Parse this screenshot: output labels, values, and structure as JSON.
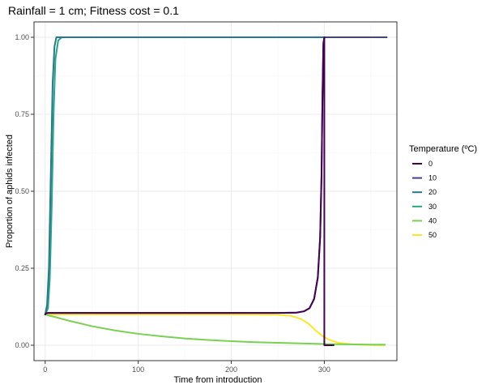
{
  "chart_data": {
    "type": "line",
    "title": "Rainfall = 1 cm; Fitness cost = 0.1",
    "xlabel": "Time from introduction",
    "ylabel": "Proportion of aphids infected",
    "xlim": [
      -12,
      378
    ],
    "ylim": [
      -0.05,
      1.05
    ],
    "x_ticks": [
      0,
      100,
      200,
      300
    ],
    "y_ticks": [
      0.0,
      0.25,
      0.5,
      0.75,
      1.0
    ],
    "x_tick_labels": [
      "0",
      "100",
      "200",
      "300"
    ],
    "y_tick_labels": [
      "0.00",
      "0.25",
      "0.50",
      "0.75",
      "1.00"
    ],
    "grid": true,
    "legend": {
      "title": "Temperature (ºC)",
      "position": "right"
    },
    "series": [
      {
        "name": "0",
        "color": "#440154",
        "points": [
          [
            0,
            0.1
          ],
          [
            1,
            0.104
          ],
          [
            3,
            0.105
          ],
          [
            50,
            0.105
          ],
          [
            100,
            0.105
          ],
          [
            150,
            0.105
          ],
          [
            200,
            0.105
          ],
          [
            250,
            0.105
          ],
          [
            270,
            0.106
          ],
          [
            278,
            0.11
          ],
          [
            284,
            0.12
          ],
          [
            289,
            0.15
          ],
          [
            293,
            0.22
          ],
          [
            295.5,
            0.35
          ],
          [
            297,
            0.55
          ],
          [
            298,
            0.8
          ],
          [
            299,
            0.98
          ],
          [
            300,
            1.0
          ],
          [
            300,
            0.0
          ],
          [
            310,
            0.0
          ]
        ]
      },
      {
        "name": "10",
        "color": "#414487",
        "points": [
          [
            0,
            0.1
          ],
          [
            1,
            0.104
          ],
          [
            3,
            0.105
          ],
          [
            50,
            0.105
          ],
          [
            100,
            0.105
          ],
          [
            150,
            0.105
          ],
          [
            200,
            0.105
          ],
          [
            250,
            0.105
          ],
          [
            270,
            0.106
          ],
          [
            278,
            0.11
          ],
          [
            284,
            0.12
          ],
          [
            289,
            0.15
          ],
          [
            293,
            0.22
          ],
          [
            295.5,
            0.35
          ],
          [
            297,
            0.55
          ],
          [
            298,
            0.8
          ],
          [
            299,
            0.98
          ],
          [
            300,
            1.0
          ],
          [
            367,
            1.0
          ]
        ]
      },
      {
        "name": "20",
        "color": "#2A788E",
        "points": [
          [
            0,
            0.1
          ],
          [
            2,
            0.13
          ],
          [
            4,
            0.25
          ],
          [
            6,
            0.55
          ],
          [
            8,
            0.85
          ],
          [
            10,
            0.97
          ],
          [
            12,
            1.0
          ],
          [
            367,
            1.0
          ]
        ]
      },
      {
        "name": "30",
        "color": "#22A884",
        "points": [
          [
            0,
            0.1
          ],
          [
            3,
            0.12
          ],
          [
            5,
            0.22
          ],
          [
            7,
            0.45
          ],
          [
            9,
            0.75
          ],
          [
            11,
            0.93
          ],
          [
            14,
            0.99
          ],
          [
            18,
            1.0
          ],
          [
            367,
            1.0
          ]
        ]
      },
      {
        "name": "40",
        "color": "#7AD151",
        "points": [
          [
            0,
            0.1
          ],
          [
            25,
            0.08
          ],
          [
            50,
            0.062
          ],
          [
            75,
            0.048
          ],
          [
            100,
            0.037
          ],
          [
            125,
            0.029
          ],
          [
            150,
            0.022
          ],
          [
            175,
            0.017
          ],
          [
            200,
            0.013
          ],
          [
            225,
            0.01
          ],
          [
            250,
            0.008
          ],
          [
            275,
            0.006
          ],
          [
            300,
            0.004
          ],
          [
            325,
            0.003
          ],
          [
            350,
            0.002
          ],
          [
            365,
            0.002
          ]
        ]
      },
      {
        "name": "50",
        "color": "#FDE725",
        "points": [
          [
            0,
            0.1
          ],
          [
            5,
            0.1
          ],
          [
            50,
            0.1
          ],
          [
            100,
            0.1
          ],
          [
            150,
            0.1
          ],
          [
            200,
            0.1
          ],
          [
            250,
            0.099
          ],
          [
            265,
            0.095
          ],
          [
            275,
            0.085
          ],
          [
            283,
            0.07
          ],
          [
            290,
            0.05
          ],
          [
            297,
            0.032
          ],
          [
            305,
            0.018
          ],
          [
            315,
            0.008
          ],
          [
            330,
            0.003
          ],
          [
            345,
            0.001
          ],
          [
            365,
            0.0
          ]
        ]
      }
    ]
  }
}
